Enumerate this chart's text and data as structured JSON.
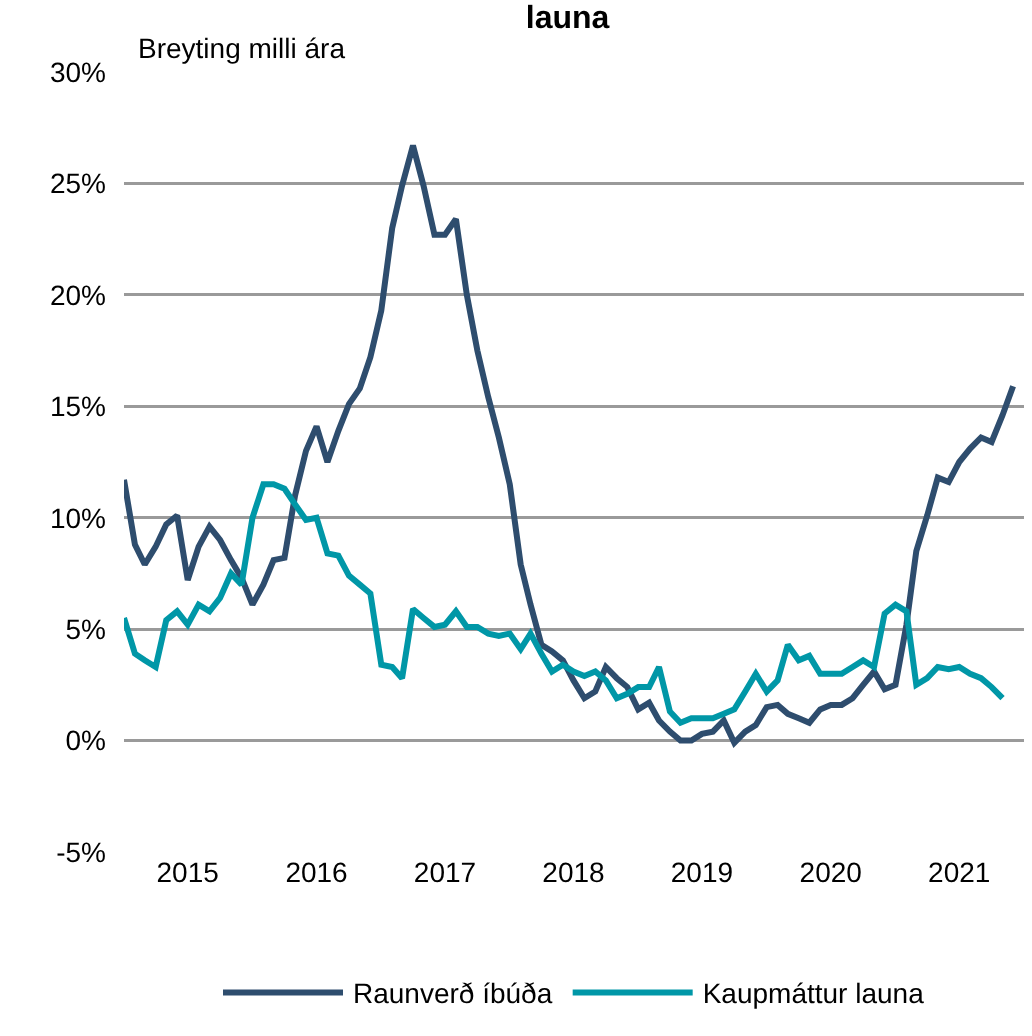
{
  "chart_data": {
    "type": "line",
    "title": "launa",
    "ylabel": "Breyting milli ára",
    "x": [
      "2015-01",
      "2015-02",
      "2015-03",
      "2015-04",
      "2015-05",
      "2015-06",
      "2015-07",
      "2015-08",
      "2015-09",
      "2015-10",
      "2015-11",
      "2015-12",
      "2016-01",
      "2016-02",
      "2016-03",
      "2016-04",
      "2016-05",
      "2016-06",
      "2016-07",
      "2016-08",
      "2016-09",
      "2016-10",
      "2016-11",
      "2016-12",
      "2017-01",
      "2017-02",
      "2017-03",
      "2017-04",
      "2017-05",
      "2017-06",
      "2017-07",
      "2017-08",
      "2017-09",
      "2017-10",
      "2017-11",
      "2017-12",
      "2018-01",
      "2018-02",
      "2018-03",
      "2018-04",
      "2018-05",
      "2018-06",
      "2018-07",
      "2018-08",
      "2018-09",
      "2018-10",
      "2018-11",
      "2018-12",
      "2019-01",
      "2019-02",
      "2019-03",
      "2019-04",
      "2019-05",
      "2019-06",
      "2019-07",
      "2019-08",
      "2019-09",
      "2019-10",
      "2019-11",
      "2019-12",
      "2020-01",
      "2020-02",
      "2020-03",
      "2020-04",
      "2020-05",
      "2020-06",
      "2020-07",
      "2020-08",
      "2020-09",
      "2020-10",
      "2020-11",
      "2020-12",
      "2021-01",
      "2021-02",
      "2021-03",
      "2021-04",
      "2021-05",
      "2021-06",
      "2021-07",
      "2021-08",
      "2021-09",
      "2021-10",
      "2021-11",
      "2021-12"
    ],
    "series": [
      {
        "name": "Raunverð íbúða",
        "color": "#2e4d6e",
        "values": [
          11.7,
          8.8,
          7.9,
          8.7,
          9.7,
          10.1,
          7.2,
          8.7,
          9.6,
          9.0,
          8.1,
          7.3,
          6.1,
          7.0,
          8.1,
          8.2,
          11.0,
          13.0,
          14.1,
          12.5,
          13.9,
          15.1,
          15.8,
          17.2,
          19.3,
          23.0,
          24.9,
          26.7,
          24.9,
          22.7,
          22.7,
          23.4,
          20.0,
          17.5,
          15.4,
          13.6,
          11.5,
          7.9,
          6.1,
          4.3,
          4.0,
          3.6,
          2.7,
          1.9,
          2.2,
          3.3,
          2.8,
          2.4,
          1.4,
          1.7,
          0.9,
          0.4,
          0.0,
          0.0,
          0.3,
          0.4,
          0.9,
          -0.1,
          0.4,
          0.7,
          1.5,
          1.6,
          1.2,
          1.0,
          0.8,
          1.4,
          1.6,
          1.6,
          1.9,
          2.5,
          3.1,
          2.3,
          2.5,
          5.2,
          8.5,
          10.1,
          11.8,
          11.6,
          12.5,
          13.1,
          13.6,
          13.4,
          14.6,
          15.9
        ]
      },
      {
        "name": "Kaupmáttur launa",
        "color": "#0097a7",
        "values": [
          5.5,
          3.9,
          3.6,
          3.3,
          5.4,
          5.8,
          5.2,
          6.1,
          5.8,
          6.4,
          7.5,
          7.0,
          10.0,
          11.5,
          11.5,
          11.3,
          10.6,
          9.9,
          10.0,
          8.4,
          8.3,
          7.4,
          7.0,
          6.6,
          3.4,
          3.3,
          2.8,
          5.9,
          5.5,
          5.1,
          5.2,
          5.8,
          5.1,
          5.1,
          4.8,
          4.7,
          4.8,
          4.1,
          4.8,
          3.9,
          3.1,
          3.4,
          3.1,
          2.9,
          3.1,
          2.7,
          1.9,
          2.1,
          2.4,
          2.4,
          3.3,
          1.3,
          0.8,
          1.0,
          1.0,
          1.0,
          1.2,
          1.4,
          2.2,
          3.0,
          2.2,
          2.7,
          4.3,
          3.6,
          3.8,
          3.0,
          3.0,
          3.0,
          3.3,
          3.6,
          3.3,
          5.7,
          6.1,
          5.8,
          2.5,
          2.8,
          3.3,
          3.2,
          3.3,
          3.0,
          2.8,
          2.4,
          1.9,
          null
        ]
      }
    ],
    "xlim": [
      "2015-01-01",
      "2022-01-01"
    ],
    "xticks": [
      {
        "value": "2015-07-01",
        "label": "2015"
      },
      {
        "value": "2016-07-01",
        "label": "2016"
      },
      {
        "value": "2017-07-01",
        "label": "2017"
      },
      {
        "value": "2018-07-01",
        "label": "2018"
      },
      {
        "value": "2019-07-01",
        "label": "2019"
      },
      {
        "value": "2020-07-01",
        "label": "2020"
      },
      {
        "value": "2021-07-01",
        "label": "2021"
      }
    ],
    "ylim": [
      -5,
      30
    ],
    "yticks": [
      {
        "value": -5,
        "label": "-5%"
      },
      {
        "value": 0,
        "label": "0%"
      },
      {
        "value": 5,
        "label": "5%"
      },
      {
        "value": 10,
        "label": "10%"
      },
      {
        "value": 15,
        "label": "15%"
      },
      {
        "value": 20,
        "label": "20%"
      },
      {
        "value": 25,
        "label": "25%"
      },
      {
        "value": 30,
        "label": "30%"
      }
    ],
    "grid": "y",
    "legend": "bottom",
    "marker": "none",
    "line_style": "solid"
  }
}
